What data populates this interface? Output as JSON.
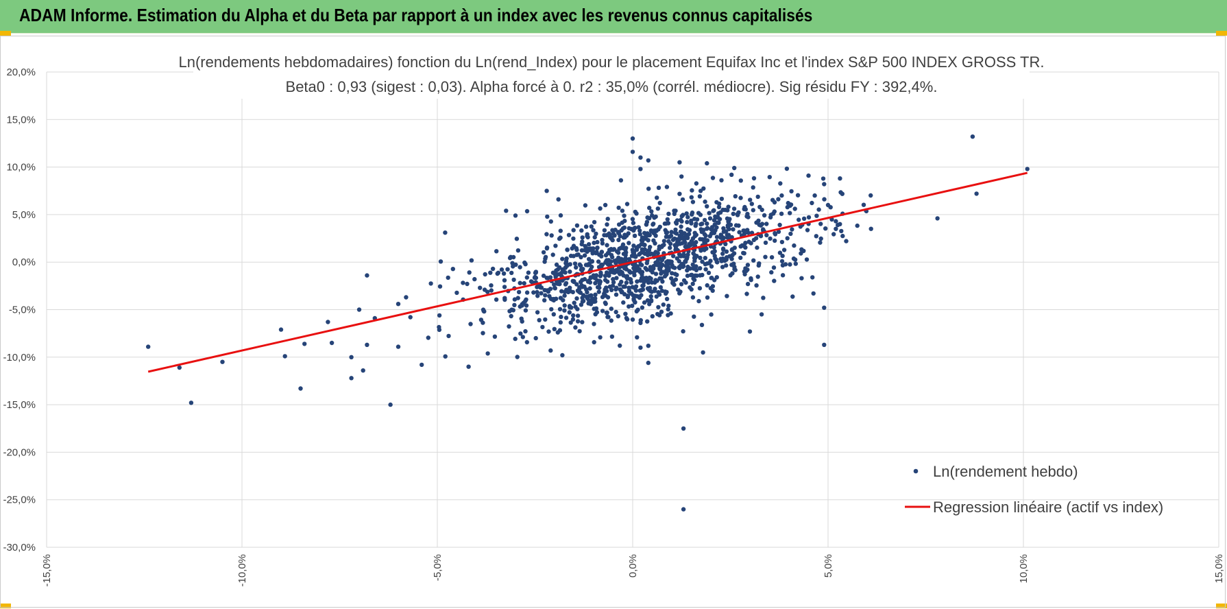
{
  "banner": {
    "title": "ADAM Informe. Estimation du Alpha et du Beta par rapport à un index avec les revenus connus capitalisés",
    "color": "#7dc97f",
    "corner_color": "#f2b705"
  },
  "chart_data": {
    "type": "scatter",
    "title": "Ln(rendements hebdomadaires) fonction du Ln(rend_Index) pour le placement Equifax Inc et l'index S&P 500 INDEX GROSS TR.",
    "subtitle": "Beta0 : 0,93  (sigest : 0,03).  Alpha forcé à 0.  r2 : 35,0% (corrél. médiocre).  Sig résidu FY : 392,4%.",
    "xlim": [
      -0.15,
      0.15
    ],
    "ylim": [
      -0.3,
      0.2
    ],
    "x_ticks": [
      -0.15,
      -0.1,
      -0.05,
      0.0,
      0.05,
      0.1,
      0.15
    ],
    "x_tick_labels": [
      "-15,0%",
      "-10,0%",
      "-5,0%",
      "0,0%",
      "5,0%",
      "10,0%",
      "15,0%"
    ],
    "y_ticks": [
      0.2,
      0.15,
      0.1,
      0.05,
      0.0,
      -0.05,
      -0.1,
      -0.15,
      -0.2,
      -0.25,
      -0.3
    ],
    "y_tick_labels": [
      "20,0%",
      "15,0%",
      "10,0%",
      "5,0%",
      "0,0%",
      "-5,0%",
      "-10,0%",
      "-15,0%",
      "-20,0%",
      "-25,0%",
      "-30,0%"
    ],
    "grid": true,
    "legend_position": "bottom-right",
    "series": [
      {
        "name": "Ln(rendement hebdo)",
        "kind": "scatter",
        "color": "#264478",
        "cluster": {
          "count": 1300,
          "beta": 0.93,
          "x_mean": 0.002,
          "x_sd": 0.021,
          "resid_sd": 0.029,
          "seed": 20240
        },
        "points": [
          [
            -0.124,
            -0.089
          ],
          [
            -0.116,
            -0.111
          ],
          [
            -0.113,
            -0.148
          ],
          [
            -0.105,
            -0.105
          ],
          [
            -0.09,
            -0.071
          ],
          [
            -0.089,
            -0.099
          ],
          [
            -0.085,
            -0.133
          ],
          [
            -0.084,
            -0.086
          ],
          [
            -0.078,
            -0.063
          ],
          [
            -0.077,
            -0.085
          ],
          [
            -0.072,
            -0.1
          ],
          [
            -0.072,
            -0.122
          ],
          [
            -0.07,
            -0.05
          ],
          [
            -0.069,
            -0.114
          ],
          [
            -0.068,
            -0.087
          ],
          [
            -0.068,
            -0.014
          ],
          [
            -0.066,
            -0.059
          ],
          [
            -0.062,
            -0.15
          ],
          [
            -0.06,
            -0.044
          ],
          [
            -0.06,
            -0.089
          ],
          [
            -0.058,
            -0.037
          ],
          [
            -0.054,
            -0.108
          ],
          [
            -0.048,
            0.031
          ],
          [
            -0.042,
            -0.11
          ],
          [
            -0.03,
            0.049
          ],
          [
            -0.022,
            0.075
          ],
          [
            -0.021,
            -0.093
          ],
          [
            -0.018,
            -0.098
          ],
          [
            -0.019,
            0.066
          ],
          [
            -0.007,
            0.06
          ],
          [
            -0.003,
            0.086
          ],
          [
            0.0,
            0.13
          ],
          [
            0.0,
            0.116
          ],
          [
            0.002,
            0.098
          ],
          [
            0.002,
            0.11
          ],
          [
            0.004,
            0.107
          ],
          [
            0.004,
            -0.088
          ],
          [
            0.002,
            -0.09
          ],
          [
            0.004,
            -0.106
          ],
          [
            0.012,
            0.105
          ],
          [
            0.013,
            -0.175
          ],
          [
            0.013,
            -0.26
          ],
          [
            0.018,
            -0.095
          ],
          [
            0.019,
            0.104
          ],
          [
            0.026,
            0.099
          ],
          [
            0.03,
            -0.073
          ],
          [
            0.033,
            -0.055
          ],
          [
            0.049,
            -0.087
          ],
          [
            0.049,
            -0.048
          ],
          [
            0.045,
            0.091
          ],
          [
            0.049,
            0.082
          ],
          [
            0.046,
            -0.016
          ],
          [
            0.05,
            0.06
          ],
          [
            0.052,
            0.043
          ],
          [
            0.052,
            0.035
          ],
          [
            0.061,
            0.035
          ],
          [
            0.078,
            0.046
          ],
          [
            0.087,
            0.132
          ],
          [
            0.088,
            0.072
          ],
          [
            0.101,
            0.098
          ]
        ]
      },
      {
        "name": "Regression linéaire (actif vs index)",
        "kind": "line",
        "color": "#e81010",
        "x": [
          -0.124,
          0.101
        ],
        "y": [
          -0.1153,
          0.0939
        ]
      }
    ]
  }
}
